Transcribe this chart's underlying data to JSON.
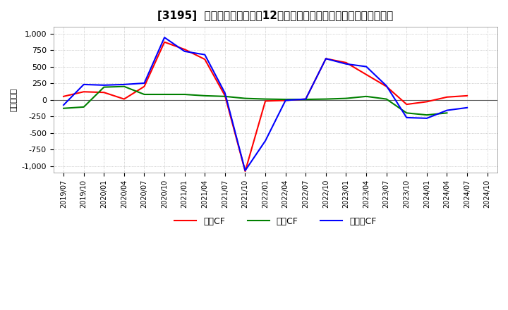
{
  "title": "[3195]  キャッシュフローの12か月移動合計の対前年同期増減額の推移",
  "ylabel": "（百万円）",
  "ylim": [
    -1100,
    1100
  ],
  "yticks": [
    -1000,
    -750,
    -500,
    -250,
    0,
    250,
    500,
    750,
    1000
  ],
  "legend_labels": [
    "営業CF",
    "投資CF",
    "フリーCF"
  ],
  "colors": [
    "#ff0000",
    "#008000",
    "#0000ff"
  ],
  "x_labels": [
    "2019/07",
    "2019/10",
    "2020/01",
    "2020/04",
    "2020/07",
    "2020/10",
    "2021/01",
    "2021/04",
    "2021/07",
    "2021/10",
    "2022/01",
    "2022/04",
    "2022/07",
    "2022/10",
    "2023/01",
    "2023/04",
    "2023/07",
    "2023/10",
    "2024/01",
    "2024/04",
    "2024/07",
    "2024/10"
  ],
  "operating_cf": [
    50,
    120,
    110,
    10,
    200,
    870,
    760,
    610,
    60,
    -1080,
    -20,
    -10,
    10,
    620,
    560,
    380,
    200,
    -70,
    -30,
    40,
    60,
    null
  ],
  "investing_cf": [
    -130,
    -110,
    190,
    200,
    80,
    80,
    80,
    60,
    50,
    20,
    10,
    5,
    5,
    10,
    20,
    50,
    10,
    -200,
    -230,
    -200,
    null,
    null
  ],
  "free_cf": [
    -80,
    230,
    220,
    230,
    250,
    940,
    730,
    680,
    100,
    -1070,
    -620,
    -10,
    10,
    620,
    540,
    500,
    210,
    -270,
    -280,
    -160,
    -120,
    null
  ],
  "background_color": "#ffffff",
  "grid_color": "#aaaaaa",
  "title_fontsize": 11,
  "linewidth": 1.5
}
